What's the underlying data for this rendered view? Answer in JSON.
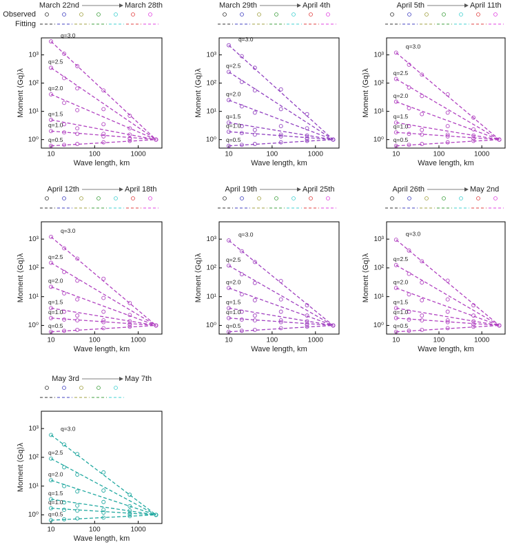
{
  "chart_data": [
    {
      "type": "line",
      "date_start": "March 22nd",
      "date_end": "March 28th",
      "legend_labels": [
        "Observed",
        "Fitting"
      ],
      "legend_colors": [
        "#333333",
        "#4040c0",
        "#a0a040",
        "#40a040",
        "#40d0d0",
        "#e04040",
        "#e040e0"
      ],
      "color": "#b040c0",
      "xlabel": "Wave length, km",
      "ylabel": "Moment ⟨Gq⟩λ",
      "xlim": [
        6,
        3500
      ],
      "ylim": [
        0.5,
        4000
      ],
      "xticks": [
        10,
        100,
        1000
      ],
      "yticks": [
        {
          "value": 1,
          "label": "10⁰"
        },
        {
          "value": 10,
          "label": "10¹"
        },
        {
          "value": 100,
          "label": "10²"
        },
        {
          "value": 1000,
          "label": "10³"
        }
      ],
      "x": [
        10,
        20,
        40,
        160,
        640,
        2560
      ],
      "series": [
        {
          "name": "q=3.0",
          "values": [
            3000,
            1100,
            400,
            55,
            7,
            1
          ]
        },
        {
          "name": "q=2.5",
          "values": [
            350,
            150,
            65,
            12,
            2.5,
            1
          ]
        },
        {
          "name": "q=2.0",
          "values": [
            40,
            20,
            11,
            3.5,
            1.5,
            1
          ]
        },
        {
          "name": "q=1.5",
          "values": [
            5,
            3.5,
            2.5,
            1.6,
            1.1,
            1
          ]
        },
        {
          "name": "q=1.0",
          "values": [
            2,
            1.8,
            1.6,
            1.3,
            1.1,
            1
          ]
        },
        {
          "name": "q=0.5",
          "values": [
            0.6,
            0.65,
            0.7,
            0.8,
            0.9,
            1
          ]
        }
      ]
    },
    {
      "type": "line",
      "date_start": "March 29th",
      "date_end": "April 4th",
      "legend_colors": [
        "#333333",
        "#4040c0",
        "#a0a040",
        "#40a040",
        "#40d0d0",
        "#e04040",
        "#e040e0"
      ],
      "color": "#9040c0",
      "xlabel": "Wave length, km",
      "ylabel": "Moment ⟨Gq⟩λ",
      "xlim": [
        6,
        3500
      ],
      "ylim": [
        0.5,
        4000
      ],
      "xticks": [
        10,
        100,
        1000
      ],
      "yticks": [
        {
          "value": 1,
          "label": "10⁰"
        },
        {
          "value": 10,
          "label": "10¹"
        },
        {
          "value": 100,
          "label": "10²"
        },
        {
          "value": 1000,
          "label": "10³"
        }
      ],
      "x": [
        10,
        20,
        40,
        160,
        640,
        2560
      ],
      "series": [
        {
          "name": "q=3.0",
          "values": [
            2200,
            900,
            350,
            60,
            8,
            1
          ]
        },
        {
          "name": "q=2.5",
          "values": [
            250,
            110,
            55,
            12,
            2.5,
            1
          ]
        },
        {
          "name": "q=2.0",
          "values": [
            25,
            15,
            9,
            3,
            1.4,
            1
          ]
        },
        {
          "name": "q=1.5",
          "values": [
            4,
            3,
            2.2,
            1.5,
            1.1,
            1
          ]
        },
        {
          "name": "q=1.0",
          "values": [
            1.9,
            1.7,
            1.5,
            1.3,
            1.1,
            1
          ]
        },
        {
          "name": "q=0.5",
          "values": [
            0.6,
            0.65,
            0.7,
            0.8,
            0.9,
            1
          ]
        }
      ]
    },
    {
      "type": "line",
      "date_start": "April 5th",
      "date_end": "April 11th",
      "legend_colors": [
        "#333333",
        "#4040c0",
        "#a0a040",
        "#40a040",
        "#40d0d0",
        "#e04040",
        "#e040e0"
      ],
      "color": "#b040c0",
      "xlabel": "Wave length, km",
      "ylabel": "Moment ⟨Gq⟩λ",
      "xlim": [
        6,
        3500
      ],
      "ylim": [
        0.5,
        4000
      ],
      "xticks": [
        10,
        100,
        1000
      ],
      "yticks": [
        {
          "value": 1,
          "label": "10⁰"
        },
        {
          "value": 10,
          "label": "10¹"
        },
        {
          "value": 100,
          "label": "10²"
        },
        {
          "value": 1000,
          "label": "10³"
        }
      ],
      "x": [
        10,
        20,
        40,
        160,
        640,
        2560
      ],
      "series": [
        {
          "name": "q=3.0",
          "values": [
            1200,
            450,
            200,
            40,
            6,
            1
          ]
        },
        {
          "name": "q=2.5",
          "values": [
            140,
            70,
            35,
            9,
            2.3,
            1
          ]
        },
        {
          "name": "q=2.0",
          "values": [
            22,
            13,
            8,
            3,
            1.4,
            1
          ]
        },
        {
          "name": "q=1.5",
          "values": [
            4,
            3,
            2.2,
            1.5,
            1.1,
            1
          ]
        },
        {
          "name": "q=1.0",
          "values": [
            1.8,
            1.6,
            1.5,
            1.3,
            1.1,
            1
          ]
        },
        {
          "name": "q=0.5",
          "values": [
            0.6,
            0.65,
            0.7,
            0.8,
            0.9,
            1
          ]
        }
      ]
    },
    {
      "type": "line",
      "date_start": "April 12th",
      "date_end": "April 18th",
      "legend_colors": [
        "#333333",
        "#4040c0",
        "#a0a040",
        "#40a040",
        "#40d0d0",
        "#e04040",
        "#e040e0"
      ],
      "color": "#b040c0",
      "xlabel": "Wave length, km",
      "ylabel": "Moment ⟨Gq⟩λ",
      "xlim": [
        6,
        3500
      ],
      "ylim": [
        0.5,
        4000
      ],
      "xticks": [
        10,
        100,
        1000
      ],
      "yticks": [
        {
          "value": 1,
          "label": "10⁰"
        },
        {
          "value": 10,
          "label": "10¹"
        },
        {
          "value": 100,
          "label": "10²"
        },
        {
          "value": 1000,
          "label": "10³"
        }
      ],
      "x": [
        10,
        20,
        40,
        160,
        640,
        2560
      ],
      "series": [
        {
          "name": "q=3.0",
          "values": [
            1200,
            480,
            210,
            42,
            6,
            1
          ]
        },
        {
          "name": "q=2.5",
          "values": [
            150,
            72,
            36,
            9,
            2.3,
            1
          ]
        },
        {
          "name": "q=2.0",
          "values": [
            22,
            13,
            8,
            3,
            1.4,
            1
          ]
        },
        {
          "name": "q=1.5",
          "values": [
            4,
            3,
            2.2,
            1.5,
            1.1,
            1
          ]
        },
        {
          "name": "q=1.0",
          "values": [
            1.8,
            1.6,
            1.5,
            1.3,
            1.1,
            1
          ]
        },
        {
          "name": "q=0.5",
          "values": [
            0.6,
            0.65,
            0.7,
            0.8,
            0.9,
            1
          ]
        }
      ]
    },
    {
      "type": "line",
      "date_start": "April 19th",
      "date_end": "April 25th",
      "legend_colors": [
        "#333333",
        "#4040c0",
        "#a0a040",
        "#40a040",
        "#40d0d0",
        "#e04040",
        "#e040e0"
      ],
      "color": "#a040c0",
      "xlabel": "Wave length, km",
      "ylabel": "Moment ⟨Gq⟩λ",
      "xlim": [
        6,
        3500
      ],
      "ylim": [
        0.5,
        4000
      ],
      "xticks": [
        10,
        100,
        1000
      ],
      "yticks": [
        {
          "value": 1,
          "label": "10⁰"
        },
        {
          "value": 10,
          "label": "10¹"
        },
        {
          "value": 100,
          "label": "10²"
        },
        {
          "value": 1000,
          "label": "10³"
        }
      ],
      "x": [
        10,
        20,
        40,
        160,
        640,
        2560
      ],
      "series": [
        {
          "name": "q=3.0",
          "values": [
            900,
            380,
            160,
            35,
            5,
            1
          ]
        },
        {
          "name": "q=2.5",
          "values": [
            120,
            60,
            30,
            8,
            2.2,
            1
          ]
        },
        {
          "name": "q=2.0",
          "values": [
            20,
            12,
            7.5,
            3,
            1.4,
            1
          ]
        },
        {
          "name": "q=1.5",
          "values": [
            4,
            3,
            2.2,
            1.5,
            1.1,
            1
          ]
        },
        {
          "name": "q=1.0",
          "values": [
            1.8,
            1.6,
            1.5,
            1.3,
            1.1,
            1
          ]
        },
        {
          "name": "q=0.5",
          "values": [
            0.6,
            0.65,
            0.7,
            0.8,
            0.9,
            1
          ]
        }
      ]
    },
    {
      "type": "line",
      "date_start": "April 26th",
      "date_end": "May 2nd",
      "legend_colors": [
        "#333333",
        "#4040c0",
        "#a0a040",
        "#40a040",
        "#40d0d0",
        "#e04040",
        "#e040e0"
      ],
      "color": "#b040c0",
      "xlabel": "Wave length, km",
      "ylabel": "Moment ⟨Gq⟩λ",
      "xlim": [
        6,
        3500
      ],
      "ylim": [
        0.5,
        4000
      ],
      "xticks": [
        10,
        100,
        1000
      ],
      "yticks": [
        {
          "value": 1,
          "label": "10⁰"
        },
        {
          "value": 10,
          "label": "10¹"
        },
        {
          "value": 100,
          "label": "10²"
        },
        {
          "value": 1000,
          "label": "10³"
        }
      ],
      "x": [
        10,
        20,
        40,
        160,
        640,
        2560
      ],
      "series": [
        {
          "name": "q=3.0",
          "values": [
            950,
            400,
            170,
            36,
            5,
            1
          ]
        },
        {
          "name": "q=2.5",
          "values": [
            125,
            62,
            31,
            8,
            2.2,
            1
          ]
        },
        {
          "name": "q=2.0",
          "values": [
            20,
            12,
            7.5,
            3,
            1.4,
            1
          ]
        },
        {
          "name": "q=1.5",
          "values": [
            4,
            3,
            2.2,
            1.5,
            1.1,
            1
          ]
        },
        {
          "name": "q=1.0",
          "values": [
            1.8,
            1.6,
            1.5,
            1.3,
            1.1,
            1
          ]
        },
        {
          "name": "q=0.5",
          "values": [
            0.6,
            0.65,
            0.7,
            0.8,
            0.9,
            1
          ]
        }
      ]
    },
    {
      "type": "line",
      "date_start": "May 3rd",
      "date_end": "May 7th",
      "legend_colors": [
        "#333333",
        "#4040c0",
        "#a0a040",
        "#40a040",
        "#40d0d0"
      ],
      "color": "#20a8a0",
      "xlabel": "Wave length, km",
      "ylabel": "Moment ⟨Gq⟩λ",
      "xlim": [
        6,
        3500
      ],
      "ylim": [
        0.5,
        4000
      ],
      "xticks": [
        10,
        100,
        1000
      ],
      "yticks": [
        {
          "value": 1,
          "label": "10⁰"
        },
        {
          "value": 10,
          "label": "10¹"
        },
        {
          "value": 100,
          "label": "10²"
        },
        {
          "value": 1000,
          "label": "10³"
        }
      ],
      "x": [
        10,
        20,
        40,
        160,
        640,
        2560
      ],
      "series": [
        {
          "name": "q=3.0",
          "values": [
            600,
            280,
            130,
            30,
            5,
            1
          ]
        },
        {
          "name": "q=2.5",
          "values": [
            90,
            45,
            25,
            7,
            2,
            1
          ]
        },
        {
          "name": "q=2.0",
          "values": [
            16,
            10,
            6.5,
            2.8,
            1.4,
            1
          ]
        },
        {
          "name": "q=1.5",
          "values": [
            3.5,
            2.7,
            2.1,
            1.5,
            1.1,
            1
          ]
        },
        {
          "name": "q=1.0",
          "values": [
            1.7,
            1.5,
            1.4,
            1.2,
            1.1,
            1
          ]
        },
        {
          "name": "q=0.5",
          "values": [
            0.65,
            0.7,
            0.75,
            0.8,
            0.9,
            1
          ]
        }
      ]
    }
  ]
}
